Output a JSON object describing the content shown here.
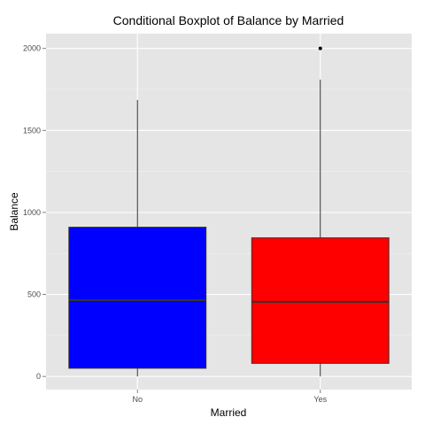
{
  "chart_data": {
    "type": "boxplot",
    "title": "Conditional Boxplot of Balance by Married",
    "xlabel": "Married",
    "ylabel": "Balance",
    "ylim": [
      -80,
      2090
    ],
    "yticks": [
      0,
      500,
      1000,
      1500,
      2000
    ],
    "y_tick_labels": [
      "0",
      "500",
      "1000",
      "1500",
      "2000"
    ],
    "y_minor_ticks": [
      250,
      750,
      1250,
      1750
    ],
    "categories": [
      "No",
      "Yes"
    ],
    "grid": true,
    "background_color": "#e5e5e5",
    "grid_color": "#ffffff",
    "series": [
      {
        "category": "No",
        "whisker_low": 0,
        "q1": 50,
        "median": 465,
        "q3": 910,
        "whisker_high": 1685,
        "outliers": [],
        "color": "#0000ff"
      },
      {
        "category": "Yes",
        "whisker_low": 0,
        "q1": 80,
        "median": 455,
        "q3": 845,
        "whisker_high": 1810,
        "outliers": [
          2000
        ],
        "color": "#ff0000"
      }
    ]
  }
}
